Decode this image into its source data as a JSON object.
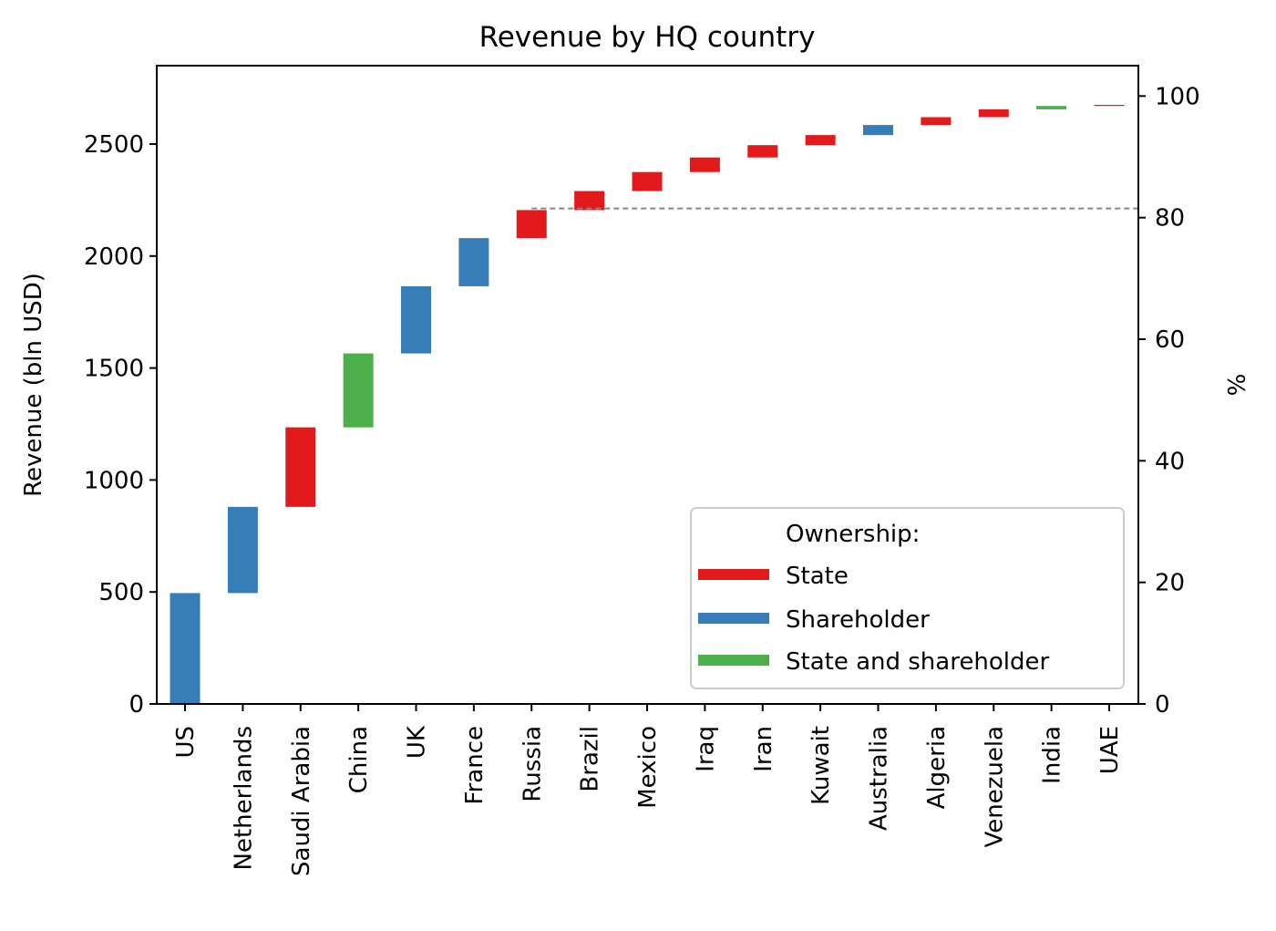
{
  "chart_data": {
    "type": "bar",
    "subtype": "waterfall",
    "title": "Revenue by HQ country",
    "xlabel": "",
    "ylabel": "Revenue (bln USD)",
    "y2label": "%",
    "ylim": [
      0,
      2850
    ],
    "y2lim": [
      0,
      105
    ],
    "yticks": [
      0,
      500,
      1000,
      1500,
      2000,
      2500
    ],
    "y2ticks": [
      0,
      20,
      40,
      60,
      80,
      100
    ],
    "categories": [
      "US",
      "Netherlands",
      "Saudi Arabia",
      "China",
      "UK",
      "France",
      "Russia",
      "Brazil",
      "Mexico",
      "Iraq",
      "Iran",
      "Kuwait",
      "Australia",
      "Algeria",
      "Venezuela",
      "India",
      "UAE"
    ],
    "values": [
      495,
      385,
      355,
      330,
      300,
      215,
      125,
      85,
      85,
      65,
      55,
      45,
      45,
      35,
      35,
      15,
      5
    ],
    "ownership": [
      "Shareholder",
      "Shareholder",
      "State",
      "State and shareholder",
      "Shareholder",
      "Shareholder",
      "State",
      "State",
      "State",
      "State",
      "State",
      "State",
      "Shareholder",
      "State",
      "State",
      "State and shareholder",
      "State"
    ],
    "reference_line": {
      "start_category": "Russia",
      "y2_value": 81.5,
      "style": "dashed"
    },
    "legend": {
      "title": "Ownership:",
      "position": "lower-right",
      "entries": [
        {
          "label": "State",
          "color": "#e31a1c"
        },
        {
          "label": "Shareholder",
          "color": "#377eb8"
        },
        {
          "label": "State and shareholder",
          "color": "#4daf4a"
        }
      ]
    },
    "grid": false
  }
}
